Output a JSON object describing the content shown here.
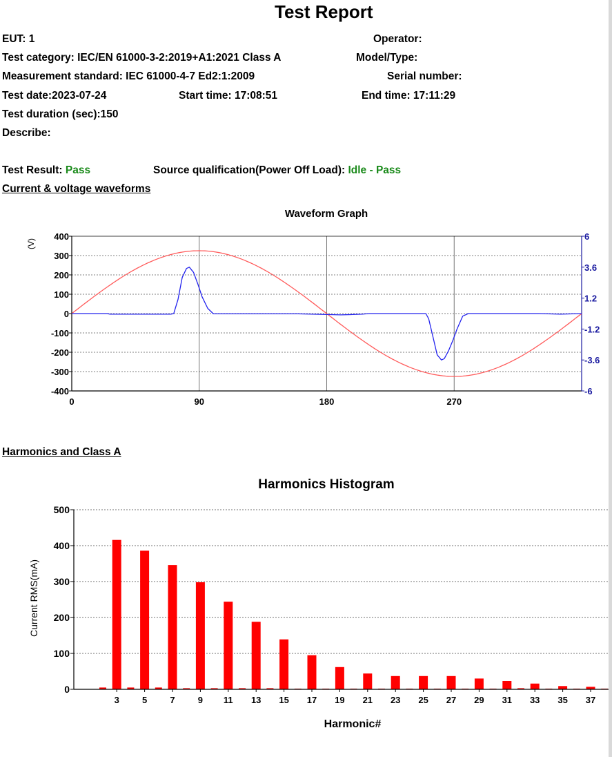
{
  "report": {
    "title": "Test Report",
    "eut_label": "EUT: 1",
    "operator_label": "Operator:",
    "test_category": "Test category: IEC/EN 61000-3-2:2019+A1:2021 Class A",
    "model_type_label": "Model/Type:",
    "measurement_standard": "Measurement standard: IEC 61000-4-7 Ed2:1:2009",
    "serial_number_label": "Serial number:",
    "test_date": "Test date:2023-07-24",
    "start_time": "Start time: 17:08:51",
    "end_time": "End time: 17:11:29",
    "test_duration": "Test duration (sec):150",
    "describe_label": "Describe:",
    "result_label": "Test Result: ",
    "result_value": "Pass",
    "source_label": "Source qualification(Power Off Load): ",
    "source_value": "Idle - Pass",
    "waveforms_section": "Current & voltage waveforms",
    "harmonics_section": "Harmonics and Class A"
  },
  "colors": {
    "pass_green": "#1a8a1a",
    "voltage_red": "#ff5a5a",
    "current_blue": "#2222ee",
    "axis_right_blue": "#1a1aa0",
    "bar_red": "#ff0000"
  },
  "chart_data": [
    {
      "type": "line",
      "title": "Waveform Graph",
      "ylabel": "(V)",
      "xlim": [
        0,
        360
      ],
      "ylim": [
        -400,
        400
      ],
      "y2lim": [
        -6,
        6
      ],
      "x_ticks": [
        "0",
        "90",
        "180",
        "270"
      ],
      "y_ticks": [
        "400",
        "300",
        "200",
        "100",
        "0",
        "-100",
        "-200",
        "-300",
        "-400"
      ],
      "y2_ticks": [
        "6",
        "3.6",
        "1.2",
        "-1.2",
        "-3.6",
        "-6"
      ],
      "grid": true,
      "series": [
        {
          "name": "Voltage",
          "axis": "left",
          "amplitude": 325,
          "shape": "sine"
        },
        {
          "name": "Current",
          "axis": "right",
          "x": [
            0,
            25,
            27,
            70,
            72,
            75,
            78,
            81,
            83,
            86,
            89,
            92,
            96,
            100,
            160,
            190,
            205,
            210,
            250,
            252,
            255,
            258,
            261,
            263,
            266,
            269,
            272,
            276,
            280,
            330,
            345,
            360
          ],
          "y": [
            0,
            0,
            -0.05,
            -0.05,
            0,
            1.1,
            2.8,
            3.5,
            3.6,
            3.2,
            2.3,
            1.3,
            0.4,
            -0.02,
            -0.02,
            -0.1,
            -0.05,
            0,
            0,
            -0.4,
            -1.8,
            -3.2,
            -3.6,
            -3.5,
            -2.9,
            -2.1,
            -1.2,
            -0.2,
            0,
            0,
            -0.05,
            0
          ]
        }
      ]
    },
    {
      "type": "bar",
      "title": "Harmonics Histogram",
      "xlabel": "Harmonic#",
      "ylabel": "Current RMS(mA)",
      "ylim": [
        0,
        500
      ],
      "y_ticks": [
        "500",
        "400",
        "300",
        "200",
        "100",
        "0"
      ],
      "x_ticks": [
        "3",
        "5",
        "7",
        "9",
        "11",
        "13",
        "15",
        "17",
        "19",
        "21",
        "23",
        "25",
        "27",
        "29",
        "31",
        "33",
        "35",
        "37"
      ],
      "grid": true,
      "categories": [
        2,
        3,
        4,
        5,
        6,
        7,
        8,
        9,
        10,
        11,
        12,
        13,
        14,
        15,
        16,
        17,
        18,
        19,
        20,
        21,
        22,
        23,
        24,
        25,
        26,
        27,
        28,
        29,
        30,
        31,
        32,
        33,
        34,
        35,
        36,
        37,
        38
      ],
      "values": [
        5,
        416,
        5,
        386,
        5,
        346,
        3,
        298,
        3,
        244,
        3,
        188,
        3,
        139,
        2,
        95,
        2,
        62,
        2,
        44,
        2,
        37,
        2,
        37,
        2,
        37,
        2,
        30,
        2,
        23,
        3,
        16,
        2,
        9,
        2,
        7,
        2
      ]
    }
  ]
}
